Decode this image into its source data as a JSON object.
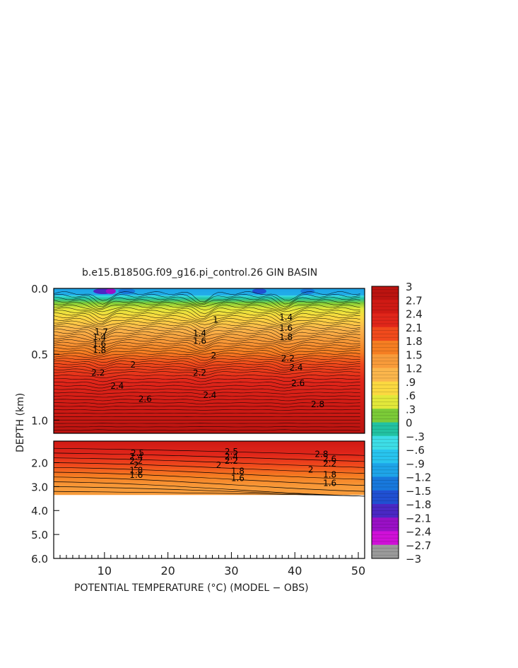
{
  "chart_data": {
    "type": "heatmap",
    "title": "b.e15.B1850G.f09_g16.pi_control.26 GIN BASIN",
    "xlabel": "POTENTIAL TEMPERATURE (°C) (MODEL − OBS)",
    "ylabel": "DEPTH (km)",
    "xlim": [
      2,
      51
    ],
    "x_ticks": [
      "10",
      "20",
      "30",
      "40",
      "50"
    ],
    "upper_panel": {
      "ylim": [
        0.0,
        1.1
      ],
      "y_ticks": [
        "0.0",
        "0.5",
        "1.0"
      ]
    },
    "lower_panel": {
      "ylim": [
        1.1,
        6.0
      ],
      "y_ticks": [
        "2.0",
        "3.0",
        "4.0",
        "5.0",
        "6.0"
      ],
      "data_max_depth": 3.35
    },
    "colorbar": {
      "labels": [
        "3",
        "2.7",
        "2.4",
        "2.1",
        "1.8",
        "1.5",
        "1.2",
        ".9",
        ".6",
        ".3",
        "0",
        "−.3",
        "−.6",
        "−.9",
        "−1.2",
        "−1.5",
        "−1.8",
        "−2.1",
        "−2.4",
        "−2.7",
        "−3"
      ],
      "min": -3,
      "max": 3,
      "colors": {
        "3": "#bb1410",
        "2.7": "#cf1a14",
        "2.4": "#e0261a",
        "2.1": "#f04a1c",
        "1.8": "#f57e22",
        "1.5": "#f89b3a",
        "1.2": "#fbb64c",
        "0.9": "#fbd840",
        "0.6": "#e2e83a",
        "0.3": "#7ccb38",
        "0": "#22c2a2",
        "-0.3": "#3ddde6",
        "-0.6": "#28c4ee",
        "-0.9": "#1ea4e8",
        "-1.2": "#1878dc",
        "-1.5": "#2050d2",
        "-1.8": "#4a28c4",
        "-2.1": "#9a10c6",
        "-2.4": "#d010d8",
        "-2.7": "#9a9a9a",
        "-3": "#6a6a6a"
      }
    },
    "upper_contour_labels": [
      {
        "x": 14.5,
        "depth": 0.58,
        "text": "2"
      },
      {
        "x": 27.2,
        "depth": 0.51,
        "text": "2"
      },
      {
        "x": 9.0,
        "depth": 0.64,
        "text": "2.2"
      },
      {
        "x": 25.0,
        "depth": 0.64,
        "text": "2.2"
      },
      {
        "x": 38.9,
        "depth": 0.53,
        "text": "2.2"
      },
      {
        "x": 40.2,
        "depth": 0.6,
        "text": "2.4"
      },
      {
        "x": 12.0,
        "depth": 0.74,
        "text": "2.4"
      },
      {
        "x": 26.6,
        "depth": 0.81,
        "text": "2.4"
      },
      {
        "x": 40.5,
        "depth": 0.72,
        "text": "2.6"
      },
      {
        "x": 16.4,
        "depth": 0.84,
        "text": "2.6"
      },
      {
        "x": 43.6,
        "depth": 0.88,
        "text": "2.8"
      },
      {
        "x": 9.5,
        "depth": 0.33,
        "text": "1.7"
      },
      {
        "x": 9.2,
        "depth": 0.37,
        "text": "1.4"
      },
      {
        "x": 9.2,
        "depth": 0.42,
        "text": "1.6"
      },
      {
        "x": 9.2,
        "depth": 0.47,
        "text": "1.8"
      },
      {
        "x": 27.5,
        "depth": 0.24,
        "text": "1"
      },
      {
        "x": 25.0,
        "depth": 0.34,
        "text": "1.4"
      },
      {
        "x": 25.0,
        "depth": 0.4,
        "text": "1.6"
      },
      {
        "x": 38.6,
        "depth": 0.22,
        "text": "1.4"
      },
      {
        "x": 38.6,
        "depth": 0.3,
        "text": "1.6"
      },
      {
        "x": 38.6,
        "depth": 0.37,
        "text": "1.8"
      }
    ],
    "lower_contour_labels": [
      {
        "x": 15.2,
        "depth": 1.6,
        "text": "2.5"
      },
      {
        "x": 15.0,
        "depth": 1.75,
        "text": "2.4"
      },
      {
        "x": 15.0,
        "depth": 1.92,
        "text": "2.2"
      },
      {
        "x": 15.0,
        "depth": 2.1,
        "text": "2"
      },
      {
        "x": 15.0,
        "depth": 2.32,
        "text": "1.8"
      },
      {
        "x": 15.0,
        "depth": 2.52,
        "text": "1.6"
      },
      {
        "x": 30.0,
        "depth": 1.55,
        "text": "2.5"
      },
      {
        "x": 30.0,
        "depth": 1.75,
        "text": "2.4"
      },
      {
        "x": 30.0,
        "depth": 1.92,
        "text": "2.2"
      },
      {
        "x": 28.0,
        "depth": 2.1,
        "text": "2"
      },
      {
        "x": 31.0,
        "depth": 2.35,
        "text": "1.8"
      },
      {
        "x": 31.0,
        "depth": 2.65,
        "text": "1.6"
      },
      {
        "x": 44.2,
        "depth": 1.65,
        "text": "2.8"
      },
      {
        "x": 45.5,
        "depth": 1.85,
        "text": "2.6"
      },
      {
        "x": 45.5,
        "depth": 2.05,
        "text": "2.2"
      },
      {
        "x": 42.5,
        "depth": 2.3,
        "text": "2"
      },
      {
        "x": 45.5,
        "depth": 2.5,
        "text": "1.8"
      },
      {
        "x": 45.5,
        "depth": 2.85,
        "text": "1.6"
      }
    ]
  }
}
